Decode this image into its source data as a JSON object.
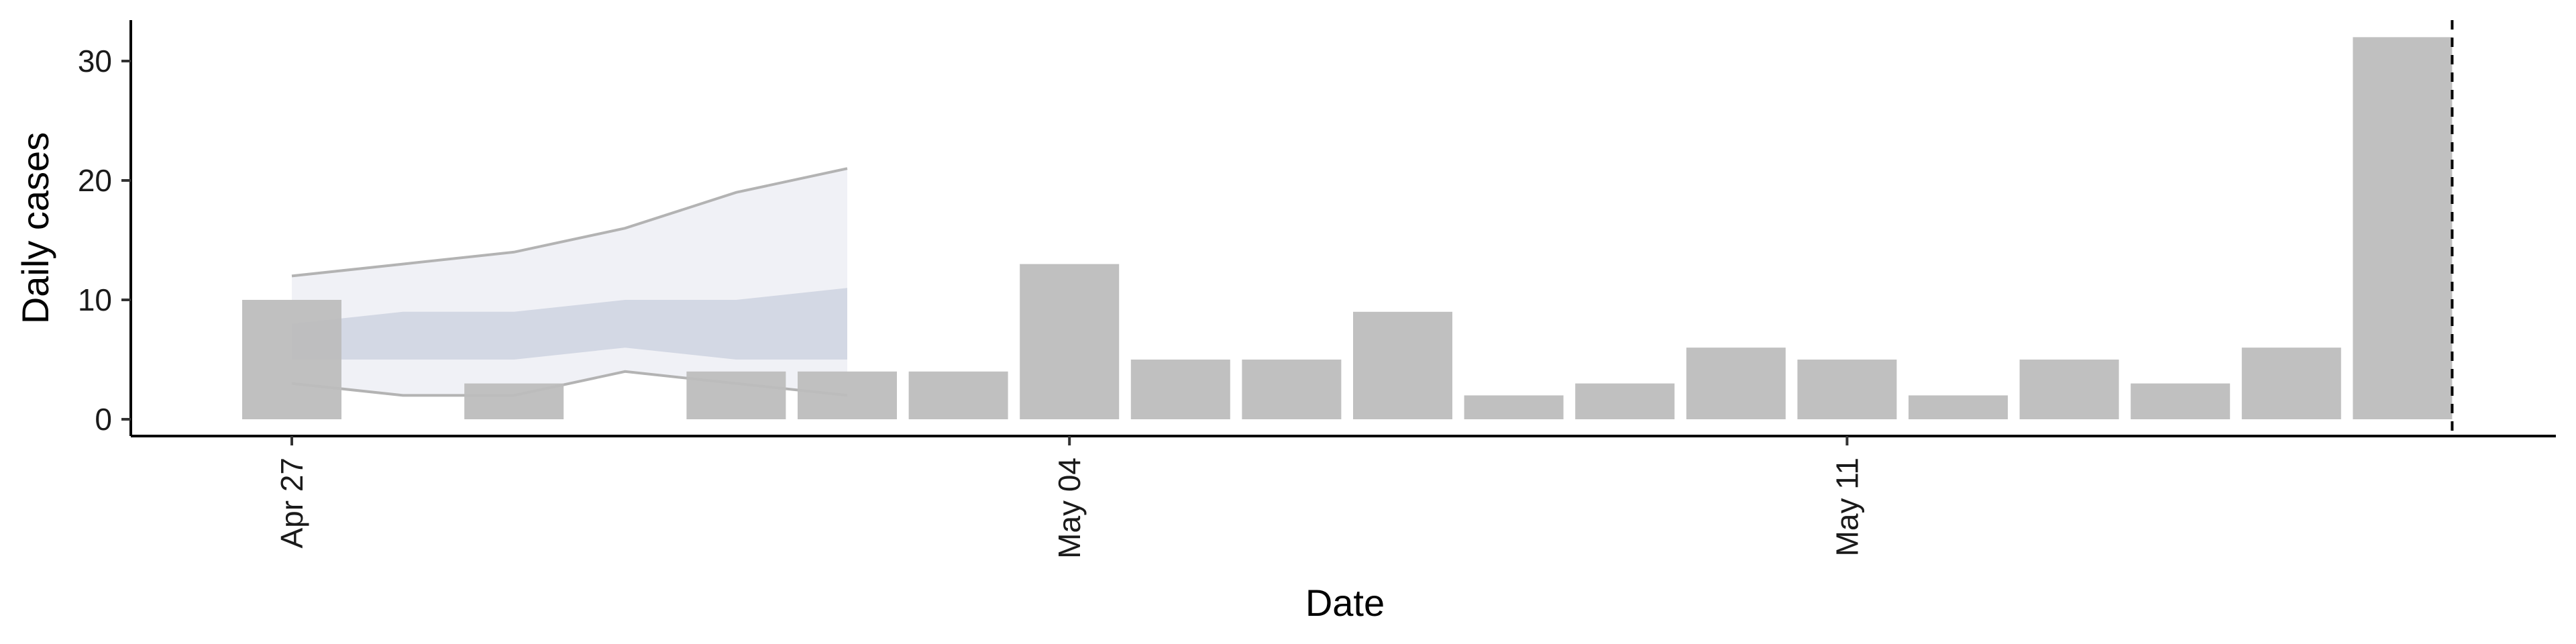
{
  "chart_data": {
    "type": "bar",
    "title": "",
    "xlabel": "Date",
    "ylabel": "Daily cases",
    "ylim": [
      -1.5,
      33.5
    ],
    "yticks": [
      0,
      10,
      20,
      30
    ],
    "x_dates": [
      "2020-04-27",
      "2020-04-28",
      "2020-04-29",
      "2020-04-30",
      "2020-05-01",
      "2020-05-02",
      "2020-05-03",
      "2020-05-04",
      "2020-05-05",
      "2020-05-06",
      "2020-05-07",
      "2020-05-08",
      "2020-05-09",
      "2020-05-10",
      "2020-05-11",
      "2020-05-12",
      "2020-05-13",
      "2020-05-14",
      "2020-05-15",
      "2020-05-16"
    ],
    "x_tick_labels": [
      {
        "date": "2020-04-27",
        "label": "Apr 27"
      },
      {
        "date": "2020-05-04",
        "label": "May 04"
      },
      {
        "date": "2020-05-11",
        "label": "May 11"
      }
    ],
    "series": [
      {
        "type": "bar",
        "values": [
          10,
          0,
          3,
          0,
          4,
          4,
          4,
          13,
          5,
          5,
          9,
          2,
          3,
          6,
          5,
          2,
          5,
          3,
          6,
          32
        ],
        "color": "#bdbdbd"
      },
      {
        "type": "band",
        "x": [
          "2020-04-27",
          "2020-04-28",
          "2020-04-29",
          "2020-04-30",
          "2020-05-01",
          "2020-05-02"
        ],
        "lower": [
          3,
          2,
          2,
          4,
          3,
          2
        ],
        "upper": [
          12,
          13,
          14,
          16,
          19,
          21
        ],
        "color": "#e3e6ee",
        "edge_color": "#b3b3b3"
      },
      {
        "type": "band",
        "x": [
          "2020-04-27",
          "2020-04-28",
          "2020-04-29",
          "2020-04-30",
          "2020-05-01",
          "2020-05-02"
        ],
        "lower": [
          5,
          5,
          5,
          6,
          5,
          5
        ],
        "upper": [
          8,
          9,
          9,
          10,
          10,
          11
        ],
        "color": "#bcc3d6"
      }
    ],
    "vline": {
      "date": "2020-05-16",
      "style": "dashed"
    },
    "grid": false
  }
}
